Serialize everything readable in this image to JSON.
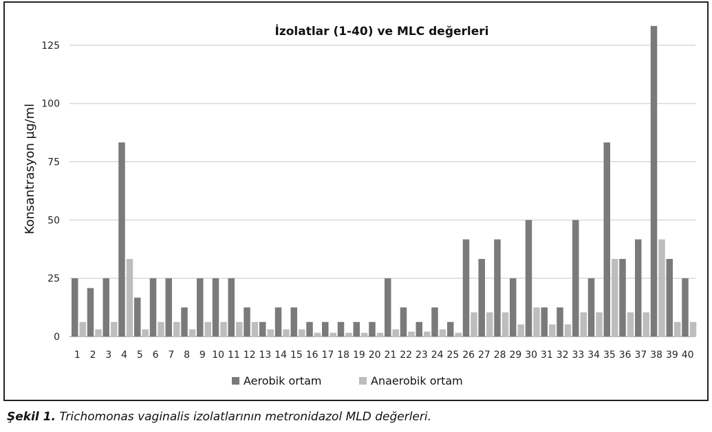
{
  "chart_data": {
    "type": "bar",
    "title": "İzolatlar (1-40) ve MLC değerleri",
    "xlabel": "",
    "ylabel": "Konsantrasyon µg/ml",
    "ylim": [
      0,
      135
    ],
    "yticks": [
      0,
      25,
      50,
      75,
      100,
      125
    ],
    "grid": "horizontal",
    "legend_position": "bottom",
    "categories": [
      "1",
      "2",
      "3",
      "4",
      "5",
      "6",
      "7",
      "8",
      "9",
      "10",
      "11",
      "12",
      "13",
      "14",
      "15",
      "16",
      "17",
      "18",
      "19",
      "20",
      "21",
      "22",
      "23",
      "24",
      "25",
      "26",
      "27",
      "28",
      "29",
      "30",
      "31",
      "32",
      "33",
      "34",
      "35",
      "36",
      "37",
      "38",
      "39",
      "40"
    ],
    "series": [
      {
        "name": "Aerobik ortam",
        "color": "#7a7a7a",
        "values": [
          25,
          20.8,
          25,
          83.3,
          16.7,
          25,
          25,
          12.5,
          25,
          25,
          25,
          12.5,
          6.25,
          12.5,
          12.5,
          6.25,
          6.25,
          6.25,
          6.25,
          6.25,
          25,
          12.5,
          6.25,
          12.5,
          6.25,
          41.7,
          33.3,
          41.7,
          25,
          50,
          12.5,
          12.5,
          50,
          25,
          83.3,
          33.3,
          41.7,
          133.3,
          33.3,
          25
        ]
      },
      {
        "name": "Anaerobik ortam",
        "color": "#bdbdbd",
        "values": [
          6.25,
          3.1,
          6.25,
          33.3,
          3.1,
          6.25,
          6.25,
          3.1,
          6.25,
          6.25,
          6.25,
          6.25,
          3.1,
          3.1,
          3.1,
          1.6,
          1.6,
          1.6,
          1.6,
          1.6,
          3.1,
          2.1,
          2.1,
          3.1,
          1.6,
          10.4,
          10.4,
          10.4,
          5.2,
          12.5,
          5.2,
          5.2,
          10.4,
          10.4,
          33.3,
          10.4,
          10.4,
          41.7,
          6.25,
          6.25
        ]
      }
    ]
  },
  "caption": {
    "label": "Şekil 1.",
    "text": " Trichomonas vaginalis izolatlarının metronidazol MLD değerleri."
  }
}
